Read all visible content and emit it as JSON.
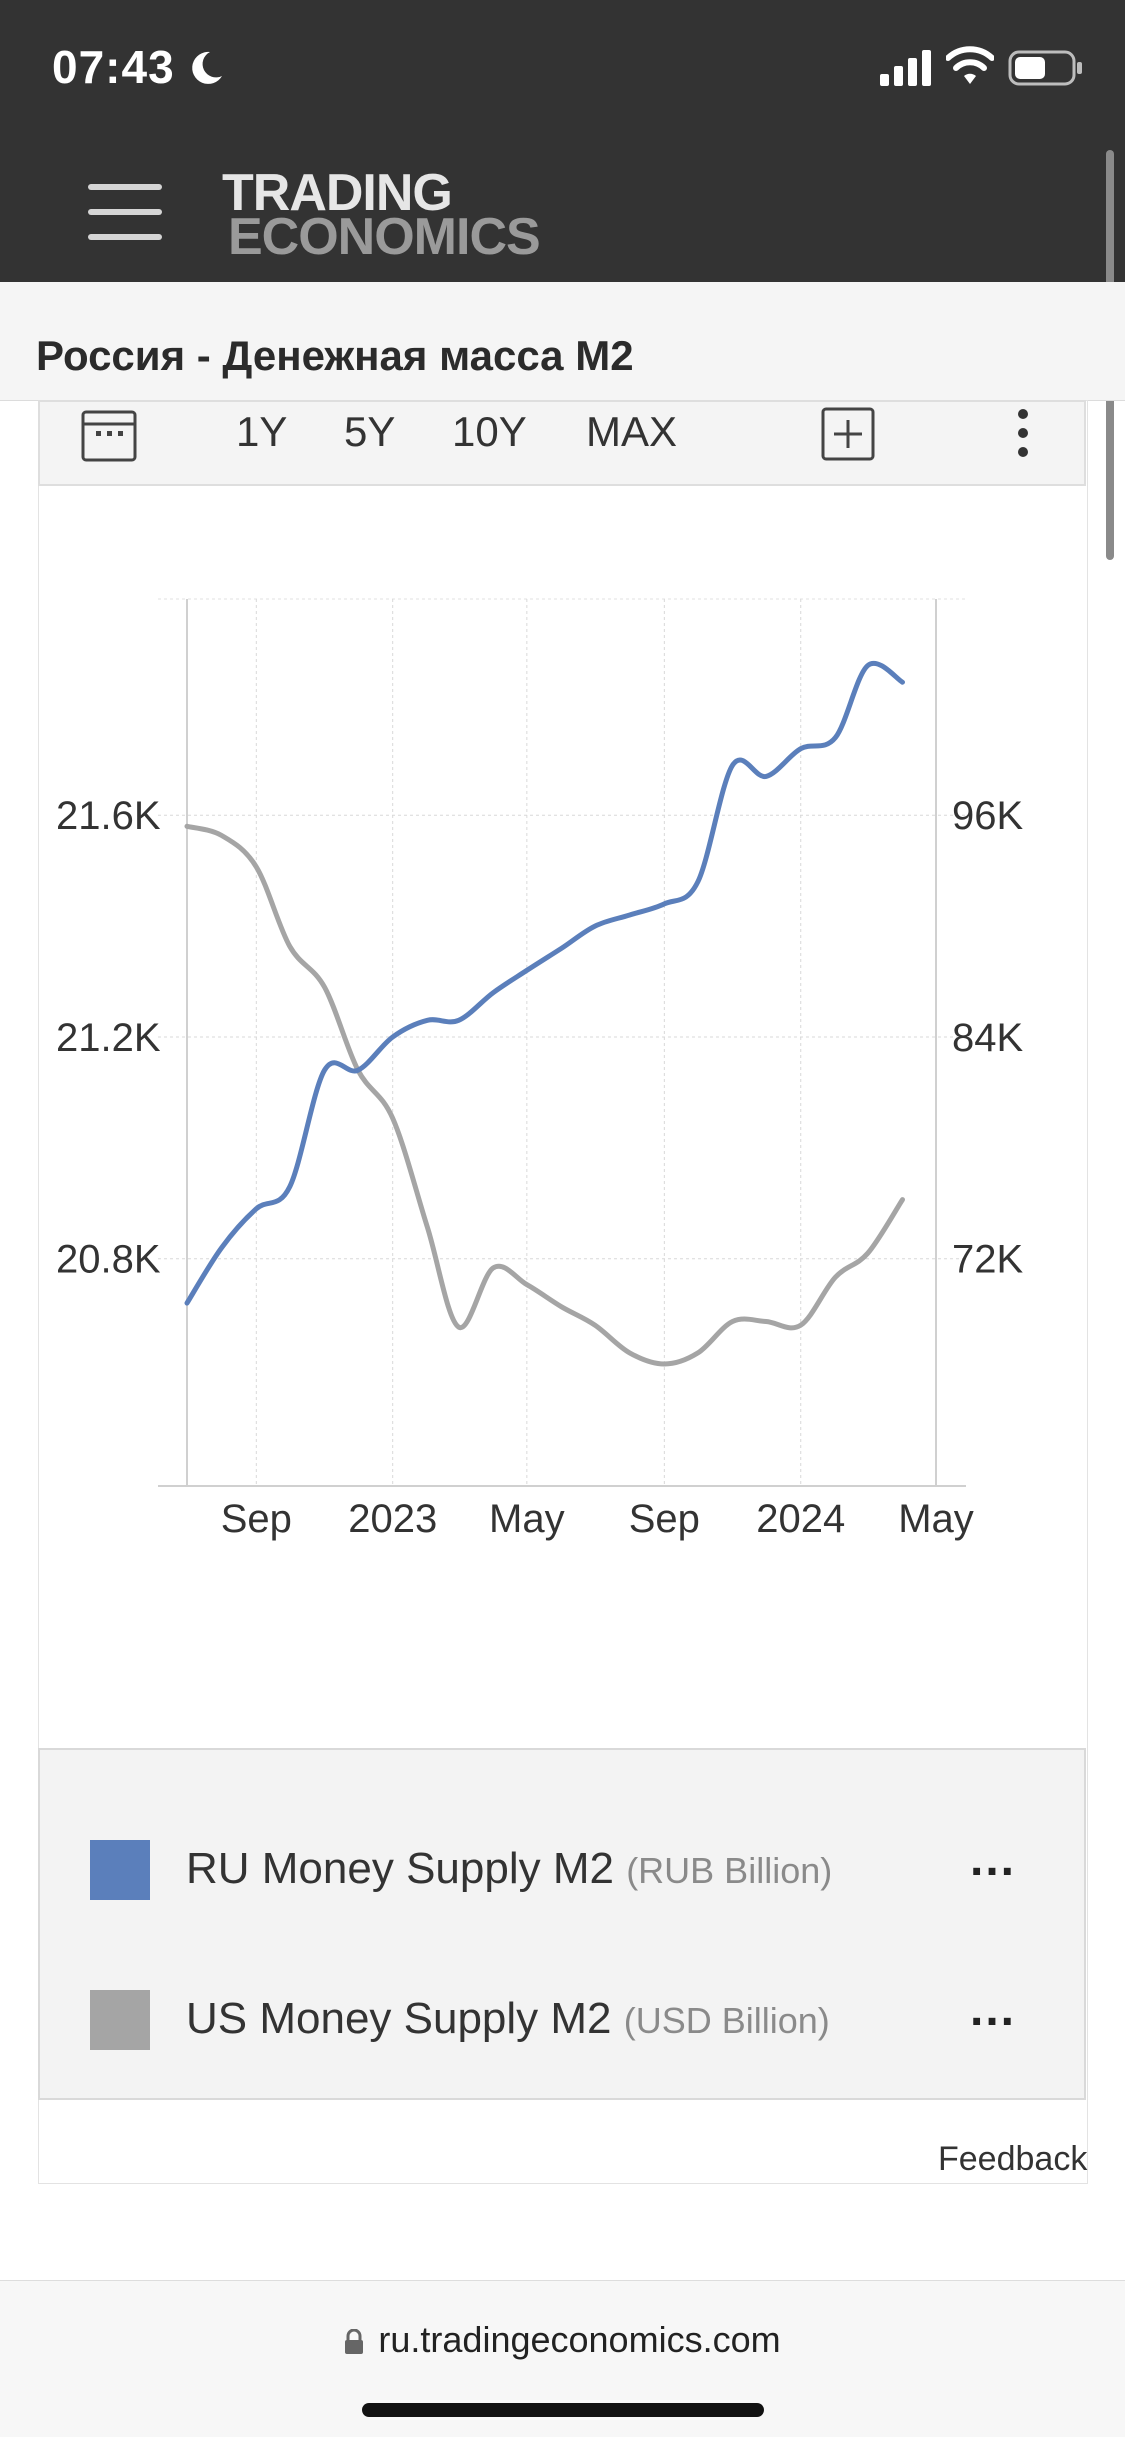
{
  "status": {
    "time": "07:43"
  },
  "header": {
    "logo_line1": "TRADING",
    "logo_line2": "ECONOMICS"
  },
  "page": {
    "title": "Россия - Денежная масса M2"
  },
  "toolbar": {
    "ranges": [
      "1Y",
      "5Y",
      "10Y",
      "MAX"
    ]
  },
  "chart_data": {
    "type": "line",
    "x_ticks": [
      "Sep",
      "2023",
      "May",
      "Sep",
      "2024",
      "May"
    ],
    "y_left_ticks": [
      "21.6K",
      "21.2K",
      "20.8K"
    ],
    "y_right_ticks": [
      "96K",
      "84K",
      "72K"
    ],
    "ylim_left": [
      20.39,
      21.99
    ],
    "ylim_right": [
      62.0,
      110.0
    ],
    "grid": true,
    "series": [
      {
        "name": "RU Money Supply M2",
        "unit": "RUB Billion",
        "axis": "left",
        "color": "#5b7fbb",
        "points": [
          [
            "2022-07-01",
            20.72
          ],
          [
            "2022-08-01",
            20.82
          ],
          [
            "2022-09-01",
            20.89
          ],
          [
            "2022-10-01",
            20.93
          ],
          [
            "2022-11-01",
            21.14
          ],
          [
            "2022-12-01",
            21.14
          ],
          [
            "2023-01-01",
            21.2
          ],
          [
            "2023-02-01",
            21.23
          ],
          [
            "2023-03-01",
            21.23
          ],
          [
            "2023-04-01",
            21.28
          ],
          [
            "2023-05-01",
            21.32
          ],
          [
            "2023-06-01",
            21.36
          ],
          [
            "2023-07-01",
            21.4
          ],
          [
            "2023-08-01",
            21.42
          ],
          [
            "2023-09-01",
            21.44
          ],
          [
            "2023-10-01",
            21.48
          ],
          [
            "2023-11-01",
            21.69
          ],
          [
            "2023-12-01",
            21.67
          ],
          [
            "2024-01-01",
            21.72
          ],
          [
            "2024-02-01",
            21.74
          ],
          [
            "2024-03-01",
            21.87
          ],
          [
            "2024-04-01",
            21.84
          ]
        ]
      },
      {
        "name": "US Money Supply M2",
        "unit": "USD Billion",
        "axis": "right",
        "color": "#a5a5a5",
        "points": [
          [
            "2022-07-01",
            97.7
          ],
          [
            "2022-08-01",
            97.2
          ],
          [
            "2022-09-01",
            95.5
          ],
          [
            "2022-10-01",
            91.2
          ],
          [
            "2022-11-01",
            89.0
          ],
          [
            "2022-12-01",
            84.5
          ],
          [
            "2023-01-01",
            81.9
          ],
          [
            "2023-02-01",
            76.0
          ],
          [
            "2023-03-01",
            70.6
          ],
          [
            "2023-04-01",
            73.8
          ],
          [
            "2023-05-01",
            72.9
          ],
          [
            "2023-06-01",
            71.7
          ],
          [
            "2023-07-01",
            70.7
          ],
          [
            "2023-08-01",
            69.2
          ],
          [
            "2023-09-01",
            68.6
          ],
          [
            "2023-10-01",
            69.2
          ],
          [
            "2023-11-01",
            70.9
          ],
          [
            "2023-12-01",
            70.9
          ],
          [
            "2024-01-01",
            70.7
          ],
          [
            "2024-02-01",
            73.3
          ],
          [
            "2024-03-01",
            74.6
          ],
          [
            "2024-04-01",
            77.5
          ]
        ]
      }
    ]
  },
  "legend": [
    {
      "name": "RU Money Supply M2",
      "unit": "(RUB Billion)",
      "color": "#5b7fbb",
      "more": "..."
    },
    {
      "name": "US Money Supply M2",
      "unit": "(USD Billion)",
      "color": "#a5a5a5",
      "more": "..."
    }
  ],
  "footer": {
    "feedback": "Feedback"
  },
  "browser": {
    "url": "ru.tradingeconomics.com"
  }
}
